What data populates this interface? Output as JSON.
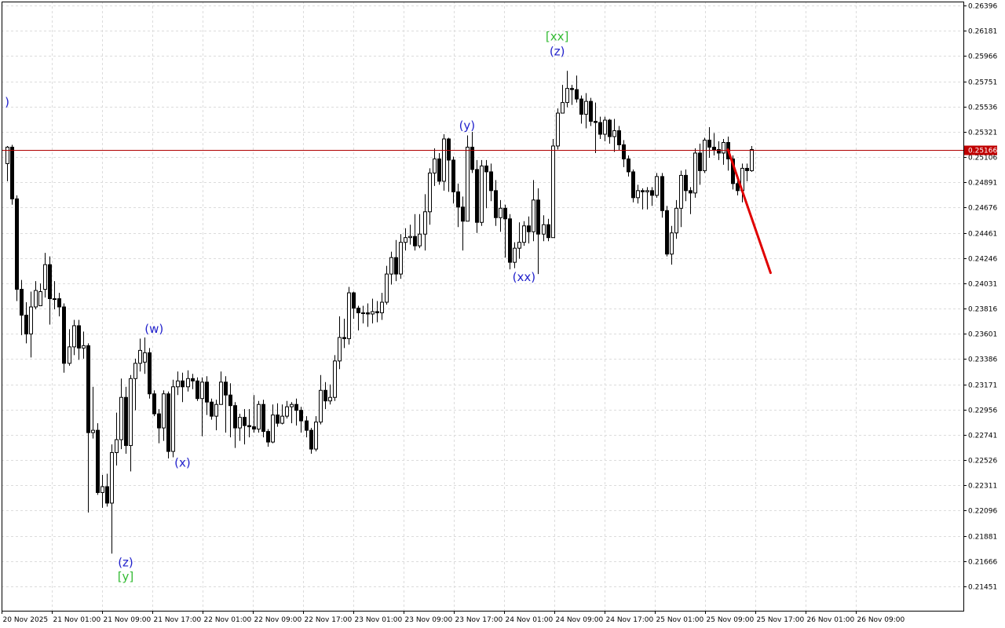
{
  "chart_data": {
    "type": "candlestick",
    "title": "",
    "xlabel": "",
    "ylabel": "",
    "ylim": [
      0.2138,
      0.2644
    ],
    "grid": true,
    "y_ticks": [
      "0.26396",
      "0.26181",
      "0.25966",
      "0.25751",
      "0.25536",
      "0.25321",
      "0.25106",
      "0.24891",
      "0.24676",
      "0.24461",
      "0.24246",
      "0.24031",
      "0.23816",
      "0.23601",
      "0.23386",
      "0.23171",
      "0.22956",
      "0.22741",
      "0.22526",
      "0.22311",
      "0.22096",
      "0.21881",
      "0.21666",
      "0.21451"
    ],
    "x_ticks": [
      "20 Nov 2025",
      "21 Nov 01:00",
      "21 Nov 09:00",
      "21 Nov 17:00",
      "22 Nov 01:00",
      "22 Nov 09:00",
      "22 Nov 17:00",
      "23 Nov 01:00",
      "23 Nov 09:00",
      "23 Nov 17:00",
      "24 Nov 01:00",
      "24 Nov 09:00",
      "24 Nov 17:00",
      "25 Nov 01:00",
      "25 Nov 09:00",
      "25 Nov 17:00",
      "26 Nov 01:00",
      "26 Nov 09:00"
    ],
    "current_price": "0.25166",
    "current_price_value": 0.25166,
    "colors": {
      "background": "#ffffff",
      "grid": "#dcdcdc",
      "candle_border": "#000000",
      "bull_fill": "#ffffff",
      "bear_fill": "#000000",
      "price_line": "#b00000",
      "price_label_bg": "#c00000",
      "wave_primary": "#2222cc",
      "wave_secondary": "#33bb33",
      "forecast": "#e00000"
    },
    "candles": [
      [
        0.2505,
        0.2519,
        0.252,
        0.249
      ],
      [
        0.2519,
        0.2475,
        0.2521,
        0.247
      ],
      [
        0.2475,
        0.2398,
        0.2478,
        0.2388
      ],
      [
        0.2398,
        0.2376,
        0.2406,
        0.2359
      ],
      [
        0.2376,
        0.236,
        0.2387,
        0.2352
      ],
      [
        0.236,
        0.2383,
        0.2396,
        0.234
      ],
      [
        0.2383,
        0.2397,
        0.2405,
        0.2381
      ],
      [
        0.2384,
        0.2396,
        0.2403,
        0.2388
      ],
      [
        0.2398,
        0.2419,
        0.2429,
        0.2391
      ],
      [
        0.2419,
        0.239,
        0.2426,
        0.2368
      ],
      [
        0.239,
        0.239,
        0.2405,
        0.2381
      ],
      [
        0.239,
        0.2383,
        0.2395,
        0.2375
      ],
      [
        0.2383,
        0.2335,
        0.2386,
        0.2327
      ],
      [
        0.2335,
        0.2349,
        0.2364,
        0.2333
      ],
      [
        0.2349,
        0.2367,
        0.2372,
        0.2342
      ],
      [
        0.2367,
        0.2348,
        0.2372,
        0.2338
      ],
      [
        0.2348,
        0.235,
        0.2362,
        0.2339
      ],
      [
        0.235,
        0.2276,
        0.2352,
        0.2208
      ],
      [
        0.2276,
        0.2278,
        0.2315,
        0.2271
      ],
      [
        0.2278,
        0.2225,
        0.2284,
        0.2223
      ],
      [
        0.2225,
        0.223,
        0.224,
        0.2212
      ],
      [
        0.223,
        0.2216,
        0.2241,
        0.2213
      ],
      [
        0.2216,
        0.2259,
        0.2266,
        0.2173
      ],
      [
        0.2259,
        0.227,
        0.2293,
        0.2248
      ],
      [
        0.227,
        0.2306,
        0.2322,
        0.2262
      ],
      [
        0.2306,
        0.2265,
        0.2315,
        0.2258
      ],
      [
        0.2265,
        0.2322,
        0.2325,
        0.2243
      ],
      [
        0.2322,
        0.2335,
        0.2339,
        0.2295
      ],
      [
        0.2335,
        0.2346,
        0.2356,
        0.2328
      ],
      [
        0.2336,
        0.2344,
        0.2357,
        0.2326
      ],
      [
        0.2344,
        0.2309,
        0.2348,
        0.2305
      ],
      [
        0.2309,
        0.2292,
        0.2312,
        0.229
      ],
      [
        0.2292,
        0.228,
        0.2296,
        0.2267
      ],
      [
        0.228,
        0.2309,
        0.2312,
        0.2269
      ],
      [
        0.2309,
        0.226,
        0.2311,
        0.2254
      ],
      [
        0.226,
        0.2315,
        0.2321,
        0.2255
      ],
      [
        0.2315,
        0.232,
        0.2328,
        0.2308
      ],
      [
        0.232,
        0.2315,
        0.2327,
        0.2302
      ],
      [
        0.2315,
        0.2322,
        0.2329,
        0.2311
      ],
      [
        0.2322,
        0.232,
        0.2326,
        0.2313
      ],
      [
        0.232,
        0.2305,
        0.2323,
        0.2303
      ],
      [
        0.2305,
        0.2319,
        0.2323,
        0.2273
      ],
      [
        0.2319,
        0.2302,
        0.2324,
        0.2291
      ],
      [
        0.2302,
        0.229,
        0.2305,
        0.2287
      ],
      [
        0.229,
        0.23,
        0.2304,
        0.2278
      ],
      [
        0.23,
        0.2319,
        0.2328,
        0.23
      ],
      [
        0.2319,
        0.2308,
        0.2324,
        0.2276
      ],
      [
        0.2308,
        0.2299,
        0.2318,
        0.2272
      ],
      [
        0.2299,
        0.228,
        0.2302,
        0.2263
      ],
      [
        0.228,
        0.2289,
        0.2292,
        0.2269
      ],
      [
        0.2289,
        0.2282,
        0.2296,
        0.2266
      ],
      [
        0.2282,
        0.2281,
        0.2296,
        0.2272
      ],
      [
        0.2281,
        0.2279,
        0.2308,
        0.2276
      ],
      [
        0.2279,
        0.23,
        0.2303,
        0.2276
      ],
      [
        0.23,
        0.2277,
        0.2304,
        0.2272
      ],
      [
        0.2277,
        0.2268,
        0.2279,
        0.2264
      ],
      [
        0.2268,
        0.2291,
        0.23,
        0.2267
      ],
      [
        0.2291,
        0.2284,
        0.2301,
        0.2281
      ],
      [
        0.2284,
        0.229,
        0.23,
        0.2283
      ],
      [
        0.229,
        0.2298,
        0.2303,
        0.2288
      ],
      [
        0.2298,
        0.23,
        0.2302,
        0.2284
      ],
      [
        0.23,
        0.2295,
        0.2305,
        0.2282
      ],
      [
        0.2295,
        0.2286,
        0.2298,
        0.2276
      ],
      [
        0.2286,
        0.2278,
        0.229,
        0.2272
      ],
      [
        0.2278,
        0.2262,
        0.228,
        0.2258
      ],
      [
        0.2262,
        0.2285,
        0.229,
        0.226
      ],
      [
        0.2285,
        0.2312,
        0.2325,
        0.2283
      ],
      [
        0.2312,
        0.2303,
        0.2319,
        0.2296
      ],
      [
        0.2303,
        0.2306,
        0.2317,
        0.23
      ],
      [
        0.2306,
        0.2337,
        0.2342,
        0.2303
      ],
      [
        0.2337,
        0.2357,
        0.2375,
        0.233
      ],
      [
        0.2357,
        0.2356,
        0.2373,
        0.2348
      ],
      [
        0.2356,
        0.2395,
        0.24,
        0.2351
      ],
      [
        0.2395,
        0.2382,
        0.2396,
        0.2373
      ],
      [
        0.2382,
        0.2378,
        0.2384,
        0.2363
      ],
      [
        0.2378,
        0.2378,
        0.2384,
        0.2369
      ],
      [
        0.2378,
        0.2377,
        0.2386,
        0.2366
      ],
      [
        0.2377,
        0.2379,
        0.239,
        0.2369
      ],
      [
        0.2379,
        0.2378,
        0.2388,
        0.237
      ],
      [
        0.2378,
        0.2387,
        0.2395,
        0.2372
      ],
      [
        0.2387,
        0.2411,
        0.2418,
        0.2385
      ],
      [
        0.2411,
        0.2425,
        0.243,
        0.2402
      ],
      [
        0.2425,
        0.2411,
        0.244,
        0.2405
      ],
      [
        0.2411,
        0.2438,
        0.2445,
        0.2407
      ],
      [
        0.2438,
        0.2442,
        0.245,
        0.2431
      ],
      [
        0.2442,
        0.2443,
        0.2453,
        0.2436
      ],
      [
        0.2443,
        0.2435,
        0.2462,
        0.2431
      ],
      [
        0.2435,
        0.2445,
        0.2462,
        0.2433
      ],
      [
        0.2445,
        0.2464,
        0.2479,
        0.2431
      ],
      [
        0.2464,
        0.2497,
        0.2501,
        0.2453
      ],
      [
        0.2497,
        0.2509,
        0.2518,
        0.2486
      ],
      [
        0.2509,
        0.249,
        0.2514,
        0.2487
      ],
      [
        0.249,
        0.2526,
        0.253,
        0.2482
      ],
      [
        0.2526,
        0.2508,
        0.2527,
        0.2481
      ],
      [
        0.2508,
        0.2481,
        0.2511,
        0.2471
      ],
      [
        0.2481,
        0.2468,
        0.2488,
        0.2451
      ],
      [
        0.2468,
        0.2456,
        0.2477,
        0.2431
      ],
      [
        0.2456,
        0.2519,
        0.2529,
        0.2456
      ],
      [
        0.2519,
        0.25,
        0.2532,
        0.2497
      ],
      [
        0.25,
        0.2455,
        0.2508,
        0.2446
      ],
      [
        0.2455,
        0.2503,
        0.2508,
        0.2452
      ],
      [
        0.2503,
        0.2498,
        0.2508,
        0.2467
      ],
      [
        0.2498,
        0.2482,
        0.2505,
        0.2473
      ],
      [
        0.2482,
        0.2459,
        0.2491,
        0.2452
      ],
      [
        0.2459,
        0.2467,
        0.2474,
        0.2447
      ],
      [
        0.2467,
        0.2458,
        0.247,
        0.2425
      ],
      [
        0.2458,
        0.2421,
        0.2462,
        0.2415
      ],
      [
        0.2421,
        0.2433,
        0.2438,
        0.2416
      ],
      [
        0.2433,
        0.2438,
        0.2455,
        0.2424
      ],
      [
        0.2438,
        0.2452,
        0.2456,
        0.2435
      ],
      [
        0.2452,
        0.2447,
        0.246,
        0.2437
      ],
      [
        0.2447,
        0.2474,
        0.2491,
        0.2439
      ],
      [
        0.2474,
        0.2445,
        0.2484,
        0.2411
      ],
      [
        0.2445,
        0.2453,
        0.2461,
        0.2439
      ],
      [
        0.2453,
        0.2442,
        0.2458,
        0.2439
      ],
      [
        0.2442,
        0.252,
        0.2526,
        0.2442
      ],
      [
        0.252,
        0.2548,
        0.2552,
        0.2517
      ],
      [
        0.2548,
        0.2557,
        0.2572,
        0.2548
      ],
      [
        0.2557,
        0.2569,
        0.2584,
        0.2553
      ],
      [
        0.2569,
        0.2568,
        0.2572,
        0.2555
      ],
      [
        0.2568,
        0.256,
        0.258,
        0.2557
      ],
      [
        0.256,
        0.2547,
        0.2563,
        0.2539
      ],
      [
        0.2547,
        0.2558,
        0.2565,
        0.2535
      ],
      [
        0.2558,
        0.2541,
        0.2561,
        0.2537
      ],
      [
        0.2541,
        0.254,
        0.2557,
        0.2514
      ],
      [
        0.254,
        0.253,
        0.2545,
        0.2526
      ],
      [
        0.253,
        0.2542,
        0.2545,
        0.2524
      ],
      [
        0.2542,
        0.2528,
        0.2543,
        0.2522
      ],
      [
        0.2528,
        0.2533,
        0.2543,
        0.2515
      ],
      [
        0.2533,
        0.2521,
        0.2537,
        0.2516
      ],
      [
        0.2521,
        0.2509,
        0.2525,
        0.2502
      ],
      [
        0.2509,
        0.2498,
        0.2512,
        0.2494
      ],
      [
        0.2498,
        0.2476,
        0.25,
        0.2472
      ],
      [
        0.2476,
        0.2482,
        0.2487,
        0.2471
      ],
      [
        0.2482,
        0.2481,
        0.2484,
        0.2466
      ],
      [
        0.2481,
        0.2482,
        0.2485,
        0.2466
      ],
      [
        0.2482,
        0.2478,
        0.2485,
        0.2469
      ],
      [
        0.2478,
        0.2494,
        0.2497,
        0.2476
      ],
      [
        0.2494,
        0.2465,
        0.2497,
        0.2459
      ],
      [
        0.2465,
        0.2428,
        0.2469,
        0.2426
      ],
      [
        0.2428,
        0.2446,
        0.2452,
        0.2419
      ],
      [
        0.2446,
        0.2467,
        0.2474,
        0.2441
      ],
      [
        0.2467,
        0.2495,
        0.2499,
        0.2451
      ],
      [
        0.2495,
        0.2482,
        0.25,
        0.2473
      ],
      [
        0.2482,
        0.248,
        0.2485,
        0.2462
      ],
      [
        0.248,
        0.2514,
        0.2518,
        0.2476
      ],
      [
        0.2514,
        0.2499,
        0.2522,
        0.2487
      ],
      [
        0.2499,
        0.2525,
        0.2527,
        0.2497
      ],
      [
        0.2525,
        0.2519,
        0.2536,
        0.251
      ],
      [
        0.2519,
        0.2517,
        0.2531,
        0.2512
      ],
      [
        0.2517,
        0.2514,
        0.2524,
        0.2508
      ],
      [
        0.2514,
        0.2523,
        0.2526,
        0.2504
      ],
      [
        0.2523,
        0.2509,
        0.2528,
        0.2499
      ],
      [
        0.2509,
        0.2488,
        0.2512,
        0.2483
      ],
      [
        0.2488,
        0.2482,
        0.2492,
        0.2478
      ],
      [
        0.2482,
        0.2501,
        0.2505,
        0.2472
      ],
      [
        0.2501,
        0.2499,
        0.2505,
        0.249
      ],
      [
        0.2499,
        0.2517,
        0.252,
        0.2498
      ]
    ],
    "annotations": [
      {
        "text": ")",
        "time_index": 0,
        "price": 0.2554,
        "color": "wave_primary"
      },
      {
        "text": "(w)",
        "time_index": 31,
        "price": 0.2361,
        "color": "wave_primary"
      },
      {
        "text": "(x)",
        "time_index": 37,
        "price": 0.2247,
        "color": "wave_primary"
      },
      {
        "text": "(z)",
        "time_index": 25,
        "price": 0.2162,
        "color": "wave_primary"
      },
      {
        "text": "[y]",
        "time_index": 25,
        "price": 0.215,
        "color": "wave_secondary"
      },
      {
        "text": "(y)",
        "time_index": 97,
        "price": 0.2534,
        "color": "wave_primary"
      },
      {
        "text": "(xx)",
        "time_index": 109,
        "price": 0.2405,
        "color": "wave_primary"
      },
      {
        "text": "(z)",
        "time_index": 116,
        "price": 0.2597,
        "color": "wave_primary"
      },
      {
        "text": "[xx]",
        "time_index": 116,
        "price": 0.261,
        "color": "wave_secondary"
      }
    ],
    "forecast": {
      "from": {
        "time_index": 152,
        "price": 0.2517
      },
      "to": {
        "time_index": 161,
        "price": 0.2412
      }
    }
  }
}
